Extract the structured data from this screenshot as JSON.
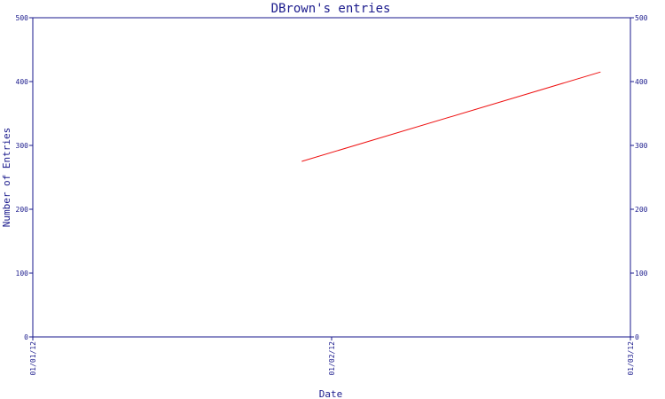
{
  "chart_data": {
    "type": "line",
    "title": "DBrown's entries",
    "xlabel": "Date",
    "ylabel": "Number of Entries",
    "x_categories": [
      "01/01/12",
      "01/02/12",
      "01/03/12"
    ],
    "ylim": [
      0,
      500
    ],
    "yticks": [
      0,
      100,
      200,
      300,
      400,
      500
    ],
    "ytick_labels": [
      "0",
      "100",
      "200",
      "300",
      "400",
      "500"
    ],
    "secondary_y_axis": true,
    "grid": false,
    "series": [
      {
        "x": [
          "01/01/12",
          "01/03/12"
        ],
        "x_index": [
          0.9,
          1.9
        ],
        "y": [
          275,
          415
        ]
      }
    ],
    "colors": {
      "axis": "#1a1a8c",
      "series": "#ee1111",
      "background": "#ffffff"
    }
  }
}
